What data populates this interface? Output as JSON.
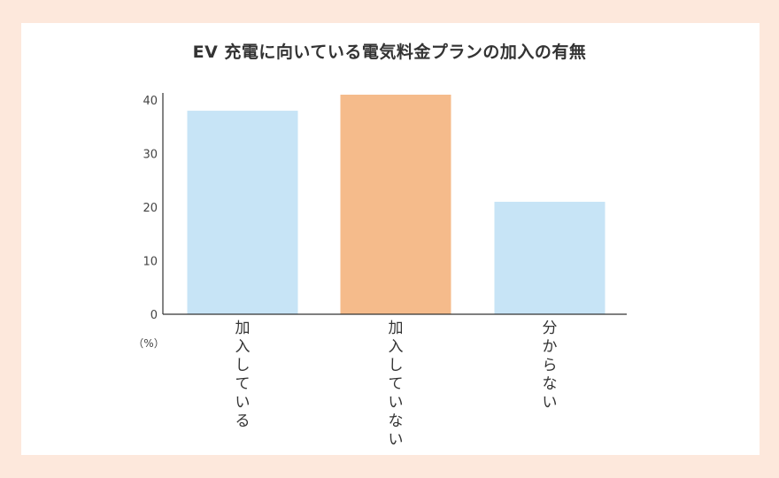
{
  "chart_data": {
    "type": "bar",
    "title": "EV 充電に向いている電気料金プランの加入の有無",
    "categories": [
      "加入している",
      "加入していない",
      "分からない"
    ],
    "values": [
      38,
      41,
      21
    ],
    "highlight_index": 1,
    "ylabel": "（%）",
    "xlabel": "",
    "ylim": [
      0,
      40
    ],
    "yticks": [
      0,
      10,
      20,
      30,
      40
    ],
    "grid": false,
    "colors": {
      "bar": "#c7e4f6",
      "highlight": "#f5bb8b",
      "axis": "#333333",
      "background": "#fde8dc",
      "card": "#ffffff"
    }
  }
}
